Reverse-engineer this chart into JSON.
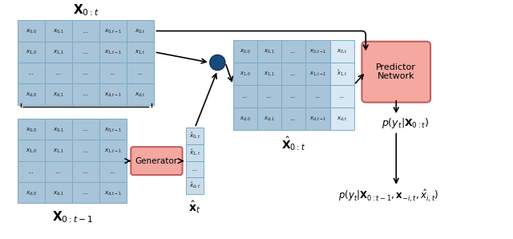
{
  "bg_color": "#ffffff",
  "matrix_fill": "#a8c4d8",
  "matrix_edge": "#7aaac8",
  "matrix_highlight": "#d8e8f4",
  "generator_fill": "#f4a8a0",
  "generator_edge": "#c06060",
  "predictor_fill": "#f4a8a0",
  "predictor_edge": "#c06060",
  "circle_fill": "#1a4a7a",
  "vector_fill": "#c8dcea",
  "vector_edge": "#7aaac8",
  "top_matrix_label": "$\\mathbf{X}_{0:t}$",
  "bottom_matrix_label": "$\\mathbf{X}_{0:t-1}$",
  "combined_matrix_label": "$\\hat{\\mathbf{X}}_{0:t}$",
  "vector_label": "$\\hat{\\mathbf{x}}_t$",
  "generator_label": "Generator",
  "predictor_label": "Predictor\nNetwork",
  "output1": "$p(y_t|\\mathbf{X}_{0:t})$",
  "output2": "$p(y_t|\\mathbf{X}_{0:t-1}, \\mathbf{x}_{-i,t}, \\hat{x}_{i,t})$",
  "top_texts": [
    [
      "$x_{0,0}$",
      "$x_{0,1}$",
      "...",
      "$x_{0,t-1}$",
      "$x_{0,t}$"
    ],
    [
      "$x_{1,0}$",
      "$x_{1,1}$",
      "...",
      "$x_{1,t-1}$",
      "$x_{1,t}$"
    ],
    [
      "...",
      "...",
      "...",
      "...",
      "..."
    ],
    [
      "$x_{d,0}$",
      "$x_{d,1}$",
      "...",
      "$x_{d,t-1}$",
      "$x_{d,t}$"
    ]
  ],
  "bot_texts": [
    [
      "$x_{0,0}$",
      "$x_{0,1}$",
      "...",
      "$x_{0,t-1}$"
    ],
    [
      "$x_{1,0}$",
      "$x_{1,1}$",
      "...",
      "$x_{1,t-1}$"
    ],
    [
      "...",
      "...",
      "...",
      "..."
    ],
    [
      "$x_{d,0}$",
      "$x_{d,1}$",
      "...",
      "$x_{d,t-1}$"
    ]
  ],
  "combined_texts": [
    [
      "$x_{0,0}$",
      "$x_{0,1}$",
      "...",
      "$x_{0,t-1}$",
      "$x_{0,t}$"
    ],
    [
      "$x_{1,0}$",
      "$x_{1,1}$",
      "...",
      "$x_{1,t-1}$",
      "$\\hat{x}_{1,t}$"
    ],
    [
      "...",
      "...",
      "...",
      "...",
      "..."
    ],
    [
      "$x_{d,0}$",
      "$x_{d,1}$",
      "...",
      "$x_{d,t-1}$",
      "$x_{d,t}$"
    ]
  ],
  "vec_texts": [
    [
      "$\\hat{x}_{0,t}$"
    ],
    [
      "$\\hat{x}_{1,t}$"
    ],
    [
      "..."
    ],
    [
      "$\\hat{x}_{d,t}$"
    ]
  ]
}
